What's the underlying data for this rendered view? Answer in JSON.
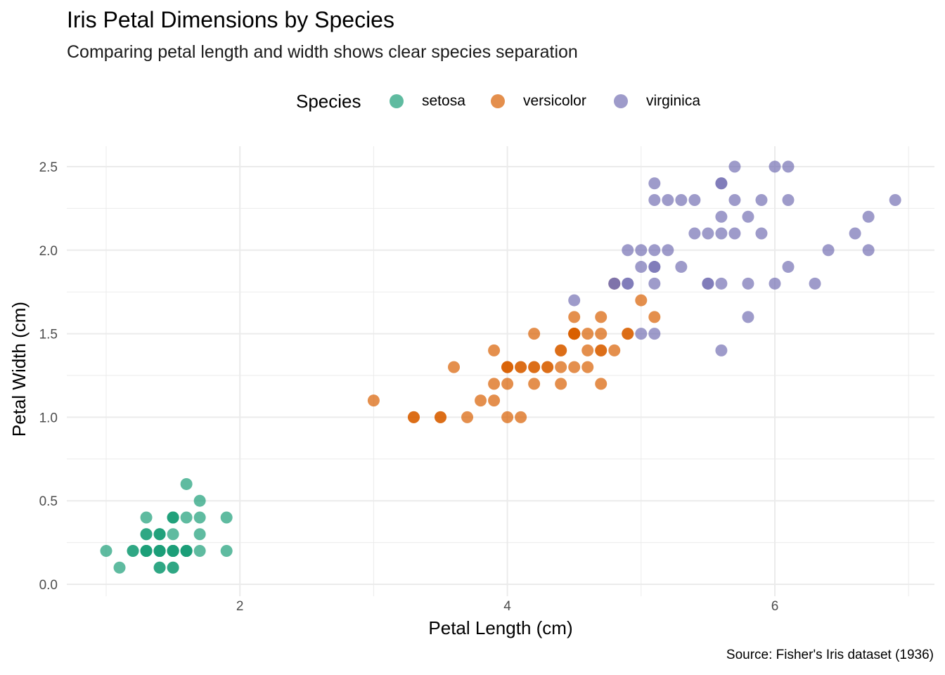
{
  "chart_data": {
    "type": "scatter",
    "title": "Iris Petal Dimensions by Species",
    "subtitle": "Comparing petal length and width shows clear species separation",
    "xlabel": "Petal Length (cm)",
    "ylabel": "Petal Width (cm)",
    "caption": "Source: Fisher's Iris dataset (1936)",
    "xlim": [
      0.7,
      7.2
    ],
    "ylim": [
      -0.05,
      2.62
    ],
    "x_ticks": [
      "2",
      "4",
      "6"
    ],
    "y_ticks": [
      "0.0",
      "0.5",
      "1.0",
      "1.5",
      "2.0",
      "2.5"
    ],
    "grid": true,
    "legend_position": "top",
    "legend_title": "Species",
    "series": [
      {
        "name": "setosa",
        "color": "#1B9E77",
        "points": [
          [
            1.4,
            0.2
          ],
          [
            1.4,
            0.2
          ],
          [
            1.3,
            0.2
          ],
          [
            1.5,
            0.2
          ],
          [
            1.4,
            0.2
          ],
          [
            1.7,
            0.4
          ],
          [
            1.4,
            0.3
          ],
          [
            1.5,
            0.2
          ],
          [
            1.4,
            0.2
          ],
          [
            1.5,
            0.1
          ],
          [
            1.5,
            0.2
          ],
          [
            1.6,
            0.2
          ],
          [
            1.4,
            0.1
          ],
          [
            1.1,
            0.1
          ],
          [
            1.2,
            0.2
          ],
          [
            1.5,
            0.4
          ],
          [
            1.3,
            0.4
          ],
          [
            1.4,
            0.3
          ],
          [
            1.7,
            0.3
          ],
          [
            1.5,
            0.3
          ],
          [
            1.7,
            0.2
          ],
          [
            1.5,
            0.4
          ],
          [
            1.0,
            0.2
          ],
          [
            1.7,
            0.5
          ],
          [
            1.9,
            0.2
          ],
          [
            1.6,
            0.2
          ],
          [
            1.6,
            0.4
          ],
          [
            1.5,
            0.2
          ],
          [
            1.4,
            0.2
          ],
          [
            1.6,
            0.2
          ],
          [
            1.6,
            0.2
          ],
          [
            1.5,
            0.4
          ],
          [
            1.5,
            0.1
          ],
          [
            1.4,
            0.2
          ],
          [
            1.5,
            0.2
          ],
          [
            1.2,
            0.2
          ],
          [
            1.3,
            0.2
          ],
          [
            1.4,
            0.1
          ],
          [
            1.3,
            0.2
          ],
          [
            1.5,
            0.2
          ],
          [
            1.3,
            0.3
          ],
          [
            1.3,
            0.3
          ],
          [
            1.3,
            0.2
          ],
          [
            1.6,
            0.6
          ],
          [
            1.9,
            0.4
          ],
          [
            1.4,
            0.3
          ],
          [
            1.6,
            0.2
          ],
          [
            1.4,
            0.2
          ],
          [
            1.5,
            0.2
          ],
          [
            1.4,
            0.2
          ]
        ]
      },
      {
        "name": "versicolor",
        "color": "#D95F02",
        "points": [
          [
            4.7,
            1.4
          ],
          [
            4.5,
            1.5
          ],
          [
            4.9,
            1.5
          ],
          [
            4.0,
            1.3
          ],
          [
            4.6,
            1.5
          ],
          [
            4.5,
            1.3
          ],
          [
            4.7,
            1.6
          ],
          [
            3.3,
            1.0
          ],
          [
            4.6,
            1.3
          ],
          [
            3.9,
            1.4
          ],
          [
            3.5,
            1.0
          ],
          [
            4.2,
            1.5
          ],
          [
            4.0,
            1.0
          ],
          [
            4.7,
            1.4
          ],
          [
            3.6,
            1.3
          ],
          [
            4.4,
            1.4
          ],
          [
            4.5,
            1.5
          ],
          [
            4.1,
            1.0
          ],
          [
            4.5,
            1.5
          ],
          [
            3.9,
            1.1
          ],
          [
            4.8,
            1.8
          ],
          [
            4.0,
            1.3
          ],
          [
            4.9,
            1.5
          ],
          [
            4.7,
            1.2
          ],
          [
            4.3,
            1.3
          ],
          [
            4.4,
            1.4
          ],
          [
            4.8,
            1.4
          ],
          [
            5.0,
            1.7
          ],
          [
            4.5,
            1.5
          ],
          [
            3.5,
            1.0
          ],
          [
            3.8,
            1.1
          ],
          [
            3.7,
            1.0
          ],
          [
            3.9,
            1.2
          ],
          [
            5.1,
            1.6
          ],
          [
            4.5,
            1.5
          ],
          [
            4.5,
            1.6
          ],
          [
            4.7,
            1.5
          ],
          [
            4.4,
            1.3
          ],
          [
            4.1,
            1.3
          ],
          [
            4.0,
            1.3
          ],
          [
            4.4,
            1.2
          ],
          [
            4.6,
            1.4
          ],
          [
            4.0,
            1.2
          ],
          [
            3.3,
            1.0
          ],
          [
            4.2,
            1.3
          ],
          [
            4.2,
            1.2
          ],
          [
            4.2,
            1.3
          ],
          [
            4.3,
            1.3
          ],
          [
            3.0,
            1.1
          ],
          [
            4.1,
            1.3
          ]
        ]
      },
      {
        "name": "virginica",
        "color": "#7570B3",
        "points": [
          [
            6.0,
            2.5
          ],
          [
            5.1,
            1.9
          ],
          [
            5.9,
            2.1
          ],
          [
            5.6,
            1.8
          ],
          [
            5.8,
            2.2
          ],
          [
            6.6,
            2.1
          ],
          [
            4.5,
            1.7
          ],
          [
            6.3,
            1.8
          ],
          [
            5.8,
            1.8
          ],
          [
            6.1,
            2.5
          ],
          [
            5.1,
            2.0
          ],
          [
            5.3,
            1.9
          ],
          [
            5.5,
            2.1
          ],
          [
            5.0,
            2.0
          ],
          [
            5.1,
            2.4
          ],
          [
            5.3,
            2.3
          ],
          [
            5.5,
            1.8
          ],
          [
            6.7,
            2.2
          ],
          [
            6.9,
            2.3
          ],
          [
            5.0,
            1.5
          ],
          [
            5.7,
            2.3
          ],
          [
            4.9,
            2.0
          ],
          [
            6.7,
            2.0
          ],
          [
            4.9,
            1.8
          ],
          [
            5.7,
            2.1
          ],
          [
            6.0,
            1.8
          ],
          [
            4.8,
            1.8
          ],
          [
            4.9,
            1.8
          ],
          [
            5.6,
            2.1
          ],
          [
            5.8,
            1.6
          ],
          [
            6.1,
            1.9
          ],
          [
            6.4,
            2.0
          ],
          [
            5.6,
            2.2
          ],
          [
            5.1,
            1.5
          ],
          [
            5.6,
            1.4
          ],
          [
            6.1,
            2.3
          ],
          [
            5.6,
            2.4
          ],
          [
            5.5,
            1.8
          ],
          [
            4.8,
            1.8
          ],
          [
            5.4,
            2.1
          ],
          [
            5.6,
            2.4
          ],
          [
            5.1,
            2.3
          ],
          [
            5.1,
            1.9
          ],
          [
            5.9,
            2.3
          ],
          [
            5.7,
            2.5
          ],
          [
            5.2,
            2.3
          ],
          [
            5.0,
            1.9
          ],
          [
            5.2,
            2.0
          ],
          [
            5.4,
            2.3
          ],
          [
            5.1,
            1.8
          ]
        ]
      }
    ]
  }
}
